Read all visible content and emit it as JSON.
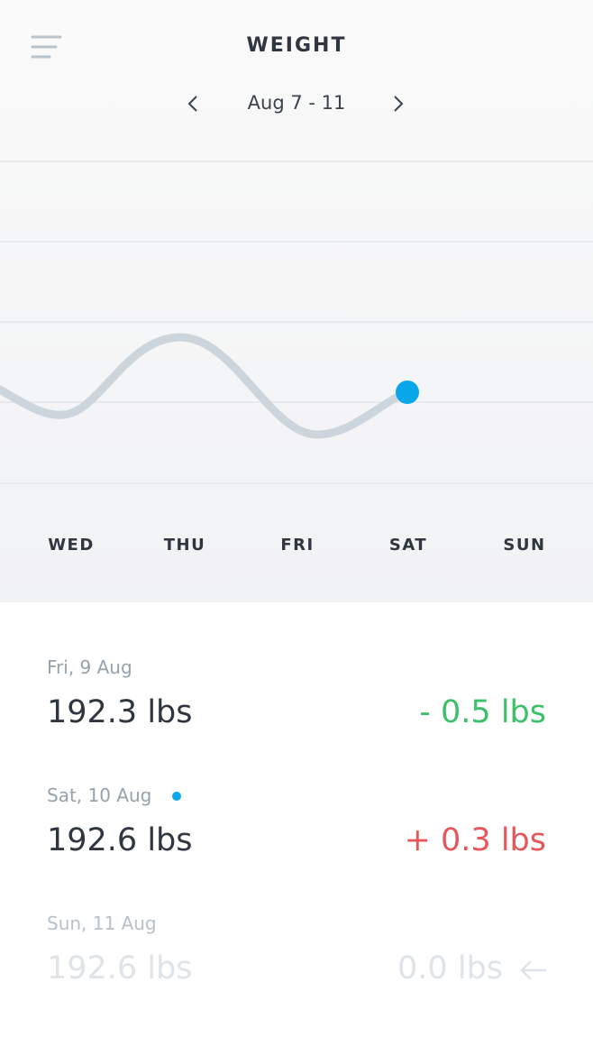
{
  "header": {
    "title": "WEIGHT",
    "range": "Aug 7 - 11"
  },
  "days": [
    "WED",
    "THU",
    "FRI",
    "SAT",
    "SUN"
  ],
  "entries": [
    {
      "date": "Fri, 9 Aug",
      "weight": "192.3 lbs",
      "change": "- 0.5 lbs"
    },
    {
      "date": "Sat, 10 Aug",
      "weight": "192.6 lbs",
      "change": "+ 0.3 lbs"
    },
    {
      "date": "Sun, 11 Aug",
      "weight": "192.6 lbs",
      "change": "0.0 lbs"
    }
  ]
}
